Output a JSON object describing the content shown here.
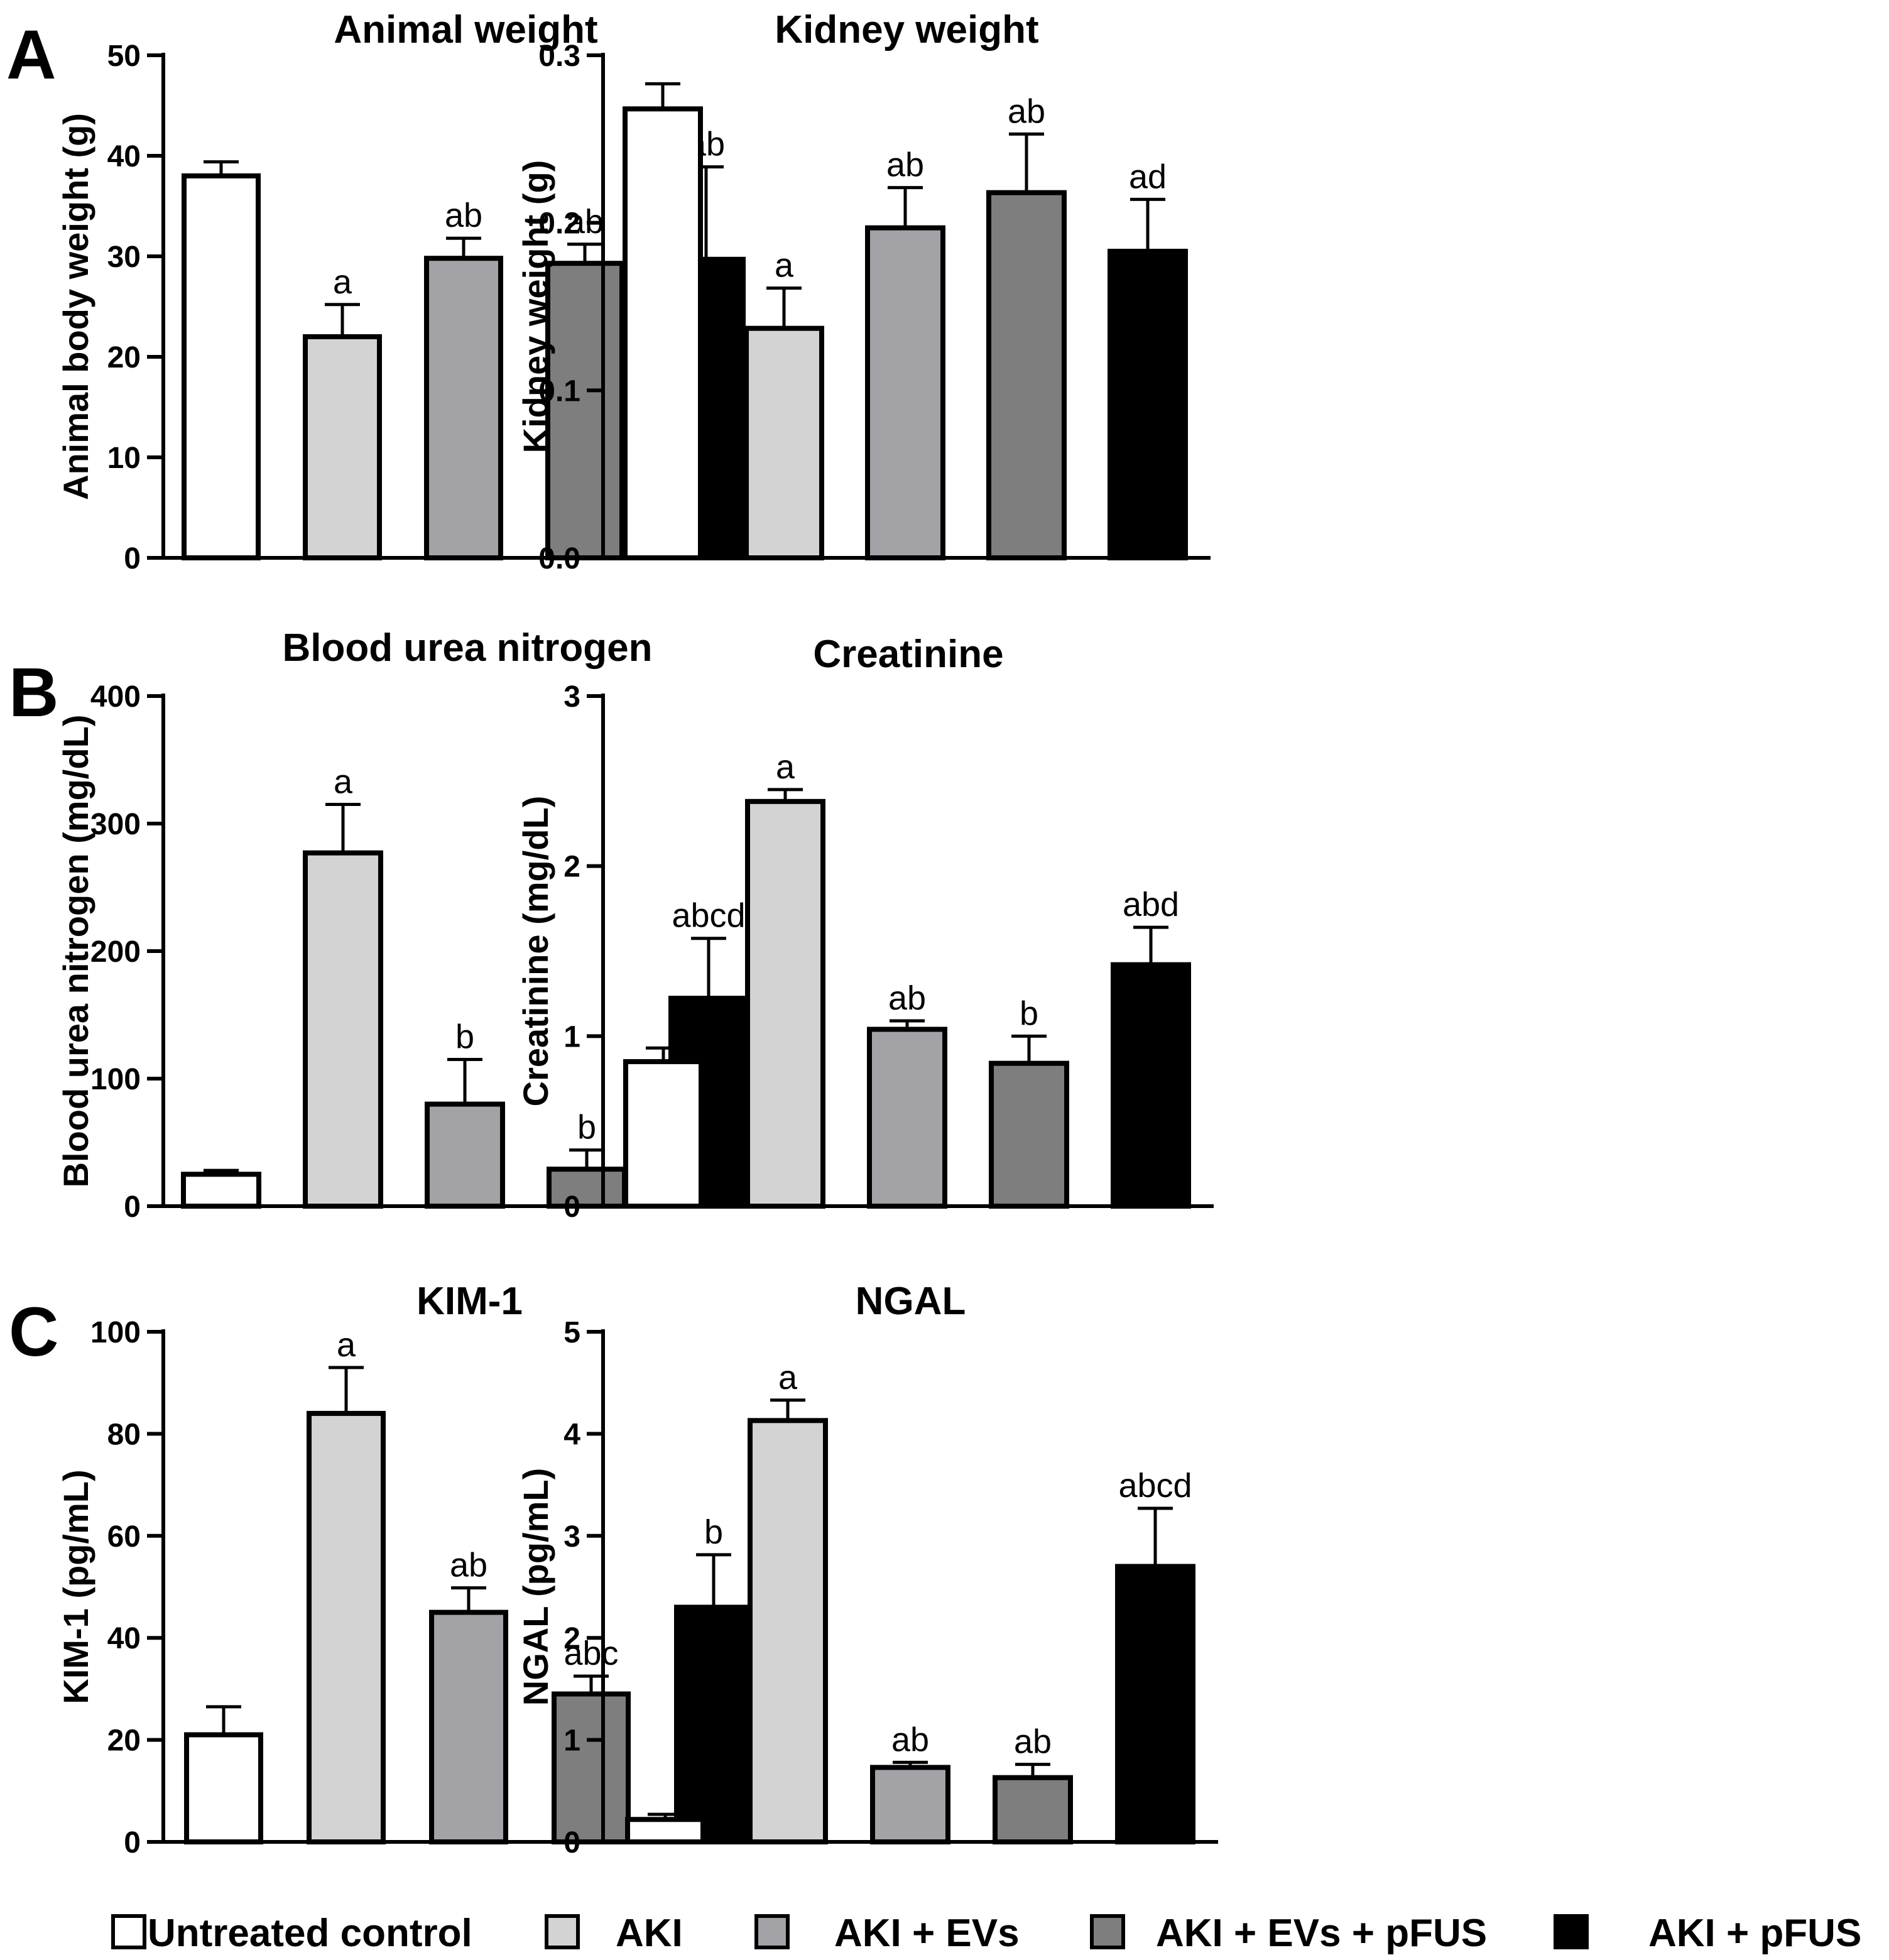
{
  "panel_letters": [
    "A",
    "B",
    "C"
  ],
  "legend": {
    "entries": [
      {
        "label": "Untreated control",
        "color": "#ffffff"
      },
      {
        "label": "AKI",
        "color": "#d3d3d3"
      },
      {
        "label": "AKI + EVs",
        "color": "#a2a2a7"
      },
      {
        "label": "AKI + EVs + pFUS",
        "color": "#7e7e7e"
      },
      {
        "label": "AKI + pFUS",
        "color": "#000000"
      }
    ]
  },
  "chart_data": [
    {
      "id": "animal-weight",
      "type": "bar",
      "panel": "A",
      "title": "Animal weight",
      "xlabel": "",
      "ylabel": "Animal body weight (g)",
      "ylim": [
        0,
        50
      ],
      "yticks": [
        "0",
        "10",
        "20",
        "30",
        "40",
        "50"
      ],
      "categories": [
        "Untreated control",
        "AKI",
        "AKI + EVs",
        "AKI + EVs + pFUS",
        "AKI + pFUS"
      ],
      "values": [
        38,
        22,
        29.8,
        29.3,
        29.7
      ],
      "errors": [
        1.4,
        3.2,
        2,
        1.9,
        9.2
      ],
      "significance": [
        "",
        "a",
        "ab",
        "ab",
        "ab"
      ]
    },
    {
      "id": "kidney-weight",
      "type": "bar",
      "panel": "A",
      "title": "Kidney weight",
      "xlabel": "",
      "ylabel": "Kidney weight (g)",
      "ylim": [
        0,
        0.3
      ],
      "yticks": [
        "0.0",
        "0.1",
        "0.2",
        "0.3"
      ],
      "categories": [
        "Untreated control",
        "AKI",
        "AKI + EVs",
        "AKI + EVs + pFUS",
        "AKI + pFUS"
      ],
      "values": [
        0.268,
        0.137,
        0.197,
        0.218,
        0.183
      ],
      "errors": [
        0.015,
        0.024,
        0.024,
        0.035,
        0.031
      ],
      "significance": [
        "",
        "a",
        "ab",
        "ab",
        "ad"
      ]
    },
    {
      "id": "blood-urea-nitrogen",
      "type": "bar",
      "panel": "B",
      "title": "Blood urea nitrogen",
      "xlabel": "",
      "ylabel": "Blood urea nitrogen (mg/dL)",
      "ylim": [
        0,
        400
      ],
      "yticks": [
        "0",
        "100",
        "200",
        "300",
        "400"
      ],
      "categories": [
        "Untreated control",
        "AKI",
        "AKI + EVs",
        "AKI + EVs + pFUS",
        "AKI + pFUS"
      ],
      "values": [
        25,
        277,
        80,
        29,
        163
      ],
      "errors": [
        3,
        38,
        35,
        15,
        47
      ],
      "significance": [
        "",
        "a",
        "b",
        "b",
        "abcd"
      ]
    },
    {
      "id": "creatinine",
      "type": "bar",
      "panel": "B",
      "title": "Creatinine",
      "xlabel": "",
      "ylabel": "Creatinine (mg/dL)",
      "ylim": [
        0,
        3
      ],
      "yticks": [
        "0",
        "1",
        "2",
        "3"
      ],
      "categories": [
        "Untreated control",
        "AKI",
        "AKI + EVs",
        "AKI + EVs + pFUS",
        "AKI + pFUS"
      ],
      "values": [
        0.85,
        2.38,
        1.04,
        0.84,
        1.42
      ],
      "errors": [
        0.08,
        0.07,
        0.05,
        0.16,
        0.22
      ],
      "significance": [
        "",
        "a",
        "ab",
        "b",
        "abd"
      ]
    },
    {
      "id": "kim-1",
      "type": "bar",
      "panel": "C",
      "title": "KIM-1",
      "xlabel": "",
      "ylabel": "KIM-1 (pg/mL)",
      "ylim": [
        0,
        100
      ],
      "yticks": [
        "0",
        "20",
        "40",
        "60",
        "80",
        "100"
      ],
      "categories": [
        "Untreated control",
        "AKI",
        "AKI + EVs",
        "AKI + EVs + pFUS",
        "AKI + pFUS"
      ],
      "values": [
        21,
        84,
        45,
        29,
        46
      ],
      "errors": [
        5.5,
        9,
        4.8,
        3.5,
        10.3
      ],
      "significance": [
        "",
        "a",
        "ab",
        "abc",
        "b"
      ]
    },
    {
      "id": "ngal",
      "type": "bar",
      "panel": "C",
      "title": "NGAL",
      "xlabel": "",
      "ylabel": "NGAL (pg/mL)",
      "ylim": [
        0,
        5
      ],
      "yticks": [
        "0",
        "1",
        "2",
        "3",
        "4",
        "5"
      ],
      "categories": [
        "Untreated control",
        "AKI",
        "AKI + EVs",
        "AKI + EVs + pFUS",
        "AKI + pFUS"
      ],
      "values": [
        0.22,
        4.13,
        0.73,
        0.63,
        2.7
      ],
      "errors": [
        0.05,
        0.2,
        0.05,
        0.13,
        0.57
      ],
      "significance": [
        "",
        "a",
        "ab",
        "ab",
        "abcd"
      ]
    }
  ]
}
